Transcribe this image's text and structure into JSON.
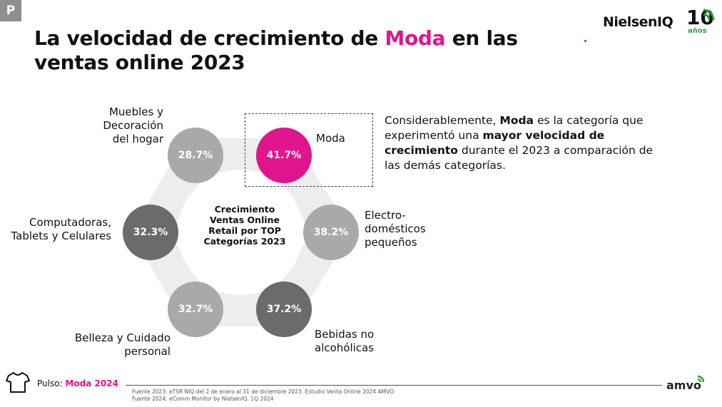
{
  "badge": "P",
  "title": {
    "before": "La velocidad de crecimiento de ",
    "highlight": "Moda",
    "after": " en las ventas online 2023"
  },
  "logo": {
    "brand": "NielsenIQ",
    "ten": "10",
    "anos": "años"
  },
  "diagram": {
    "center_label": "Crecimiento Ventas Online Retail por TOP Categorías 2023",
    "nodes": [
      {
        "label": "Moda",
        "value": "41.7%",
        "color": "#e0158d"
      },
      {
        "label": "Electro-domésticos pequeños",
        "value": "38.2%",
        "color": "#a9a9a9"
      },
      {
        "label": "Bebidas no alcohólicas",
        "value": "37.2%",
        "color": "#6b6b6b"
      },
      {
        "label": "Belleza y Cuidado personal",
        "value": "32.7%",
        "color": "#a9a9a9"
      },
      {
        "label": "Computadoras, Tablets y Celulares",
        "value": "32.3%",
        "color": "#6b6b6b"
      },
      {
        "label": "Muebles y Decoración del hogar",
        "value": "28.7%",
        "color": "#a9a9a9"
      }
    ],
    "ring_color": "#ededed"
  },
  "description": {
    "p1": "Considerablemente, ",
    "b1": "Moda",
    "p2": " es la categoría que experimentó una ",
    "b2": "mayor velocidad de crecimiento",
    "p3": " durante el 2023 a comparación de las demás categorías."
  },
  "footer": {
    "pulso_label": "Pulso: ",
    "pulso_highlight": "Moda 2024",
    "source1": "Fuente 2023: eTSR NIQ del 2 de enero al 31 de diciembre 2023. Estudio Venta Online 2024 AMVO.",
    "source2": "Fuente 2024: eComm Monitor by NielsenIQ. 1Q 2024",
    "amvo": "amvo"
  }
}
